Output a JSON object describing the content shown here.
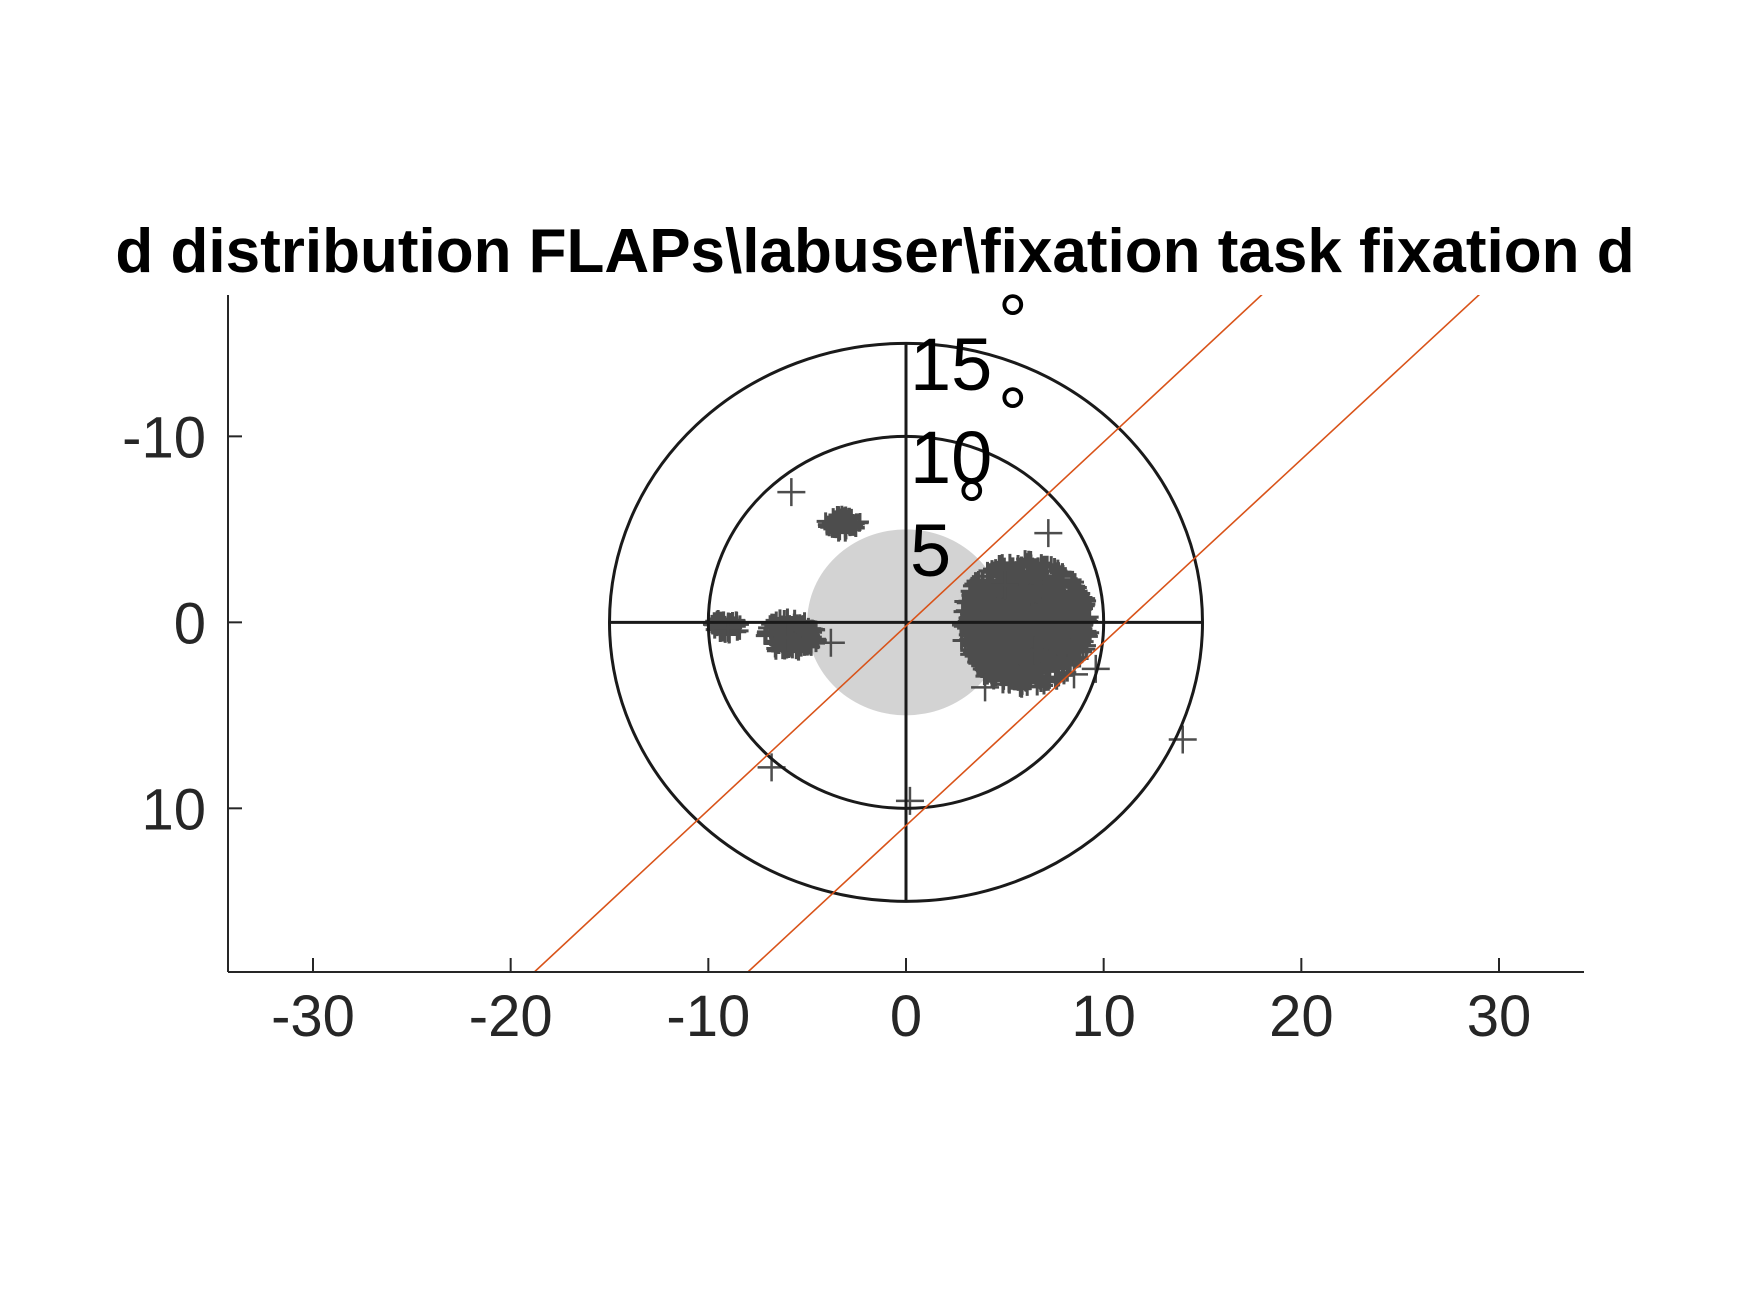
{
  "chart_data": {
    "type": "scatter",
    "title": "d distribution FLAPs\\labuser\\fixation task fixation d",
    "xlabel": "",
    "ylabel": "",
    "xlim": [
      -34.3,
      34.3
    ],
    "ylim": [
      -17.6,
      18.8
    ],
    "y_reversed": true,
    "x_ticks": [
      -30,
      -20,
      -10,
      0,
      10,
      20,
      30
    ],
    "y_ticks": [
      -10,
      0,
      10
    ],
    "x_tick_labels": [
      "-30",
      "-20",
      "-10",
      "0",
      "10",
      "20",
      "30"
    ],
    "y_tick_labels": [
      "-10",
      "0",
      "10"
    ],
    "grid": false,
    "legend": "none",
    "rings": [
      {
        "radius": 15,
        "label": "15"
      },
      {
        "radius": 10,
        "label": "10"
      },
      {
        "radius": 5,
        "label": "5"
      }
    ],
    "degree_symbol": "°",
    "central_disc_radius": 5,
    "crosshair_half_length": 15,
    "reference_lines": [
      {
        "name": "upper diagonal",
        "points": [
          [
            -18.8,
            18.8
          ],
          [
            19.2,
            -18.8
          ]
        ]
      },
      {
        "name": "lower diagonal",
        "points": [
          [
            -8.0,
            18.8
          ],
          [
            30.2,
            -18.8
          ]
        ]
      }
    ],
    "clusters": [
      {
        "cx": 6.0,
        "cy": 0.1,
        "rx": 3.4,
        "ry": 3.5
      },
      {
        "cx": -5.8,
        "cy": 0.7,
        "rx": 1.4,
        "ry": 1.0
      },
      {
        "cx": -9.1,
        "cy": 0.2,
        "rx": 0.8,
        "ry": 0.5
      },
      {
        "cx": -3.2,
        "cy": -5.3,
        "rx": 0.9,
        "ry": 0.5
      }
    ],
    "fixation_points": [
      [
        -5.8,
        -7.0
      ],
      [
        7.2,
        -4.8
      ],
      [
        -3.8,
        1.1
      ],
      [
        4.0,
        3.5
      ],
      [
        9.6,
        2.5
      ],
      [
        8.5,
        2.8
      ],
      [
        -6.8,
        7.8
      ],
      [
        0.2,
        9.6
      ],
      [
        14.0,
        6.3
      ],
      [
        5.0,
        -2.0
      ],
      [
        6.5,
        1.5
      ],
      [
        -9.0,
        0.3
      ],
      [
        -6.0,
        0.8
      ]
    ],
    "colors": {
      "rings": "#1a1a1a",
      "disc": "#d3d3d3",
      "points": "#4d4d4d",
      "reference_lines": "#d95319",
      "axes": "#262626"
    }
  }
}
